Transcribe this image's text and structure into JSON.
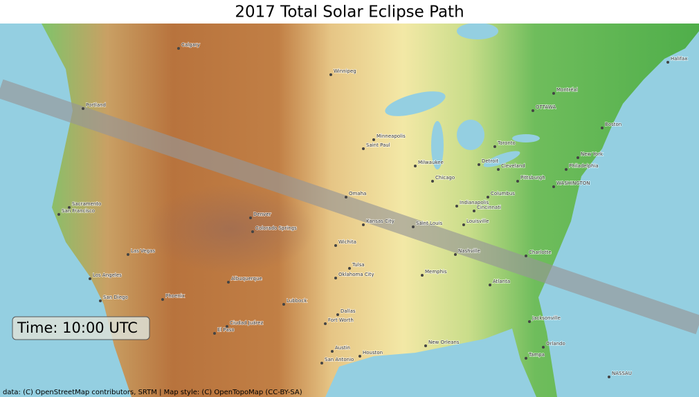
{
  "title": "2017 Total Solar Eclipse Path",
  "time_label": "Time: 10:00 UTC",
  "attribution": "data: (C) OpenStreetMap contributors, SRTM | Map style: (C) OpenTopoMap (CC-BY-SA)",
  "cities": [
    "Calgary",
    "Winnipeg",
    "Minneapolis",
    "Saint Paul",
    "Chicago",
    "Milwaukee",
    "Detroit",
    "Toronto",
    "OTTAWA",
    "Montréal",
    "New York",
    "Philadelphia",
    "WASHINGTON",
    "Pittsburgh",
    "Cleveland",
    "Columbus",
    "Indianapolis",
    "Cincinnati",
    "Louisville",
    "Saint Louis",
    "Kansas City",
    "Omaha",
    "Denver",
    "Colorado Springs",
    "Wichita",
    "Tulsa",
    "Oklahoma City",
    "Memphis",
    "Nashville",
    "Atlanta",
    "Charlotte",
    "Albuquerque",
    "Lubbock",
    "Dallas",
    "Fort Worth",
    "Austin",
    "Houston",
    "San Antonio",
    "New Orleans",
    "Jacksonville",
    "Orlando",
    "Tampa",
    "Phoenix",
    "Las Vegas",
    "Los Angeles",
    "San Diego",
    "San Francisco",
    "Sacramento",
    "Portland",
    "Boston",
    "Ciudad Juárez",
    "El Paso",
    "Halifax",
    "NASSAU"
  ]
}
